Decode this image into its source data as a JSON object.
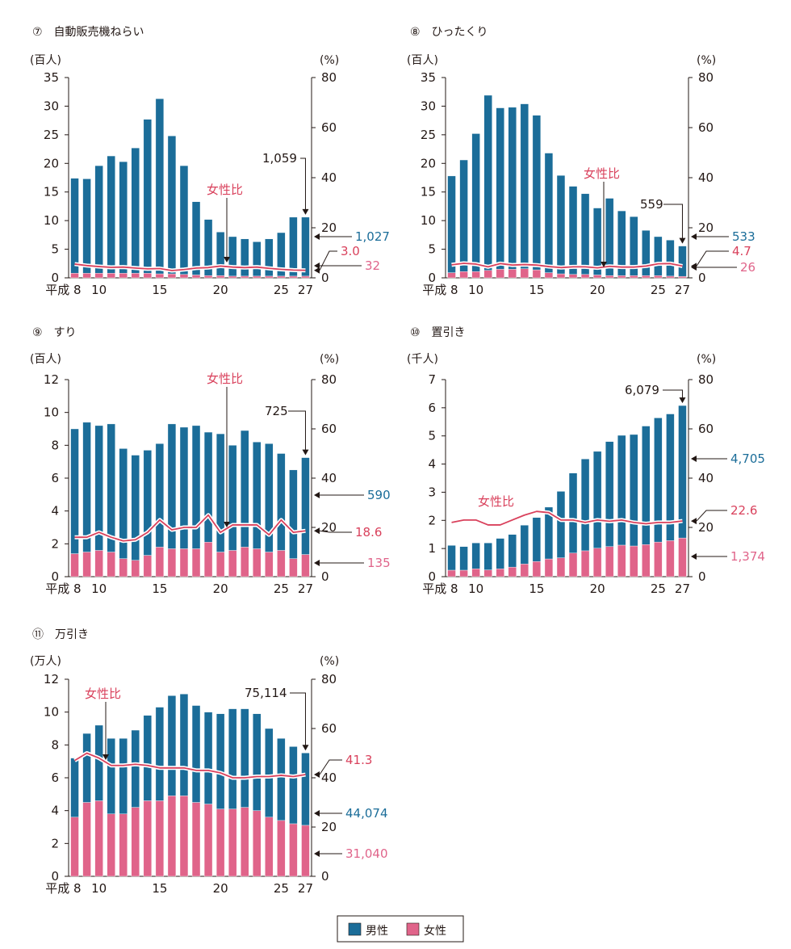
{
  "colors": {
    "male": "#1b6d99",
    "female": "#e0648a",
    "ratio": "#d9415c",
    "axis": "#231815"
  },
  "legend": {
    "male": "男性",
    "female": "女性"
  },
  "chart_data": [
    {
      "type": "bar",
      "title": "⑦　自動販売機ねらい",
      "left_unit": "(百人)",
      "right_unit": "(%)",
      "stacked": true,
      "x": [
        8,
        9,
        10,
        11,
        12,
        13,
        14,
        15,
        16,
        17,
        18,
        19,
        20,
        21,
        22,
        23,
        24,
        25,
        26,
        27
      ],
      "x_tick_labels": [
        "平成 8",
        "10",
        "15",
        "20",
        "25",
        "27"
      ],
      "x_tick_positions": [
        8,
        10,
        15,
        20,
        25,
        27
      ],
      "ylim": [
        0,
        35
      ],
      "yticks": [
        0,
        5,
        10,
        15,
        20,
        25,
        30,
        35
      ],
      "y2lim": [
        0,
        80
      ],
      "y2ticks": [
        0,
        20,
        40,
        60,
        80
      ],
      "series": [
        {
          "name": "男性",
          "values": [
            16.6,
            16.5,
            18.8,
            20.5,
            19.5,
            21.9,
            26.9,
            30.6,
            24.1,
            19.0,
            12.8,
            9.8,
            7.6,
            6.9,
            6.5,
            6.0,
            6.5,
            7.6,
            10.3,
            10.3
          ]
        },
        {
          "name": "女性",
          "values": [
            0.8,
            0.8,
            0.8,
            0.8,
            0.8,
            0.8,
            0.8,
            0.7,
            0.7,
            0.6,
            0.5,
            0.4,
            0.4,
            0.3,
            0.3,
            0.3,
            0.3,
            0.3,
            0.3,
            0.3
          ]
        },
        {
          "name": "女性比",
          "axis": "right",
          "values": [
            5.5,
            4.9,
            4.5,
            4.2,
            4.3,
            3.9,
            3.6,
            3.7,
            2.9,
            3.3,
            3.9,
            4.1,
            4.7,
            4.3,
            4.1,
            4.3,
            3.8,
            3.4,
            3.1,
            3.0
          ]
        }
      ],
      "ratio_label": "女性比",
      "annotations": {
        "total": "1,059",
        "male": "1,027",
        "ratio": "3.0",
        "female": "32"
      }
    },
    {
      "type": "bar",
      "title": "⑧　ひったくり",
      "left_unit": "(百人)",
      "right_unit": "(%)",
      "stacked": true,
      "x": [
        8,
        9,
        10,
        11,
        12,
        13,
        14,
        15,
        16,
        17,
        18,
        19,
        20,
        21,
        22,
        23,
        24,
        25,
        26,
        27
      ],
      "x_tick_labels": [
        "平成 8",
        "10",
        "15",
        "20",
        "25",
        "27"
      ],
      "x_tick_positions": [
        8,
        10,
        15,
        20,
        25,
        27
      ],
      "ylim": [
        0,
        35
      ],
      "yticks": [
        0,
        5,
        10,
        15,
        20,
        25,
        30,
        35
      ],
      "y2lim": [
        0,
        80
      ],
      "y2ticks": [
        0,
        20,
        40,
        60,
        80
      ],
      "series": [
        {
          "name": "男性",
          "values": [
            16.9,
            19.5,
            24.1,
            30.6,
            28.2,
            28.3,
            28.8,
            27.0,
            20.9,
            17.2,
            15.4,
            14.1,
            11.7,
            13.5,
            11.3,
            10.3,
            7.9,
            6.8,
            6.3,
            5.3
          ]
        },
        {
          "name": "女性",
          "values": [
            0.9,
            1.1,
            1.1,
            1.3,
            1.5,
            1.5,
            1.6,
            1.4,
            0.9,
            0.7,
            0.6,
            0.6,
            0.5,
            0.4,
            0.4,
            0.4,
            0.4,
            0.4,
            0.3,
            0.26
          ]
        },
        {
          "name": "女性比",
          "axis": "right",
          "values": [
            5.2,
            5.8,
            5.5,
            4.4,
            5.7,
            5.1,
            5.3,
            5.1,
            4.5,
            4.1,
            4.4,
            4.4,
            4.0,
            4.6,
            4.3,
            4.3,
            4.7,
            5.6,
            5.7,
            4.7
          ]
        }
      ],
      "ratio_label": "女性比",
      "annotations": {
        "total": "559",
        "male": "533",
        "ratio": "4.7",
        "female": "26"
      }
    },
    {
      "type": "bar",
      "title": "⑨　すり",
      "left_unit": "(百人)",
      "right_unit": "(%)",
      "stacked": true,
      "x": [
        8,
        9,
        10,
        11,
        12,
        13,
        14,
        15,
        16,
        17,
        18,
        19,
        20,
        21,
        22,
        23,
        24,
        25,
        26,
        27
      ],
      "x_tick_labels": [
        "平成 8",
        "10",
        "15",
        "20",
        "25",
        "27"
      ],
      "x_tick_positions": [
        8,
        10,
        15,
        20,
        25,
        27
      ],
      "ylim": [
        0,
        12
      ],
      "yticks": [
        0,
        2,
        4,
        6,
        8,
        10,
        12
      ],
      "y2lim": [
        0,
        80
      ],
      "y2ticks": [
        0,
        20,
        40,
        60,
        80
      ],
      "series": [
        {
          "name": "男性",
          "values": [
            7.6,
            7.9,
            7.6,
            7.8,
            6.7,
            6.4,
            6.4,
            6.3,
            7.6,
            7.4,
            7.5,
            6.7,
            7.2,
            6.4,
            7.1,
            6.5,
            6.6,
            5.9,
            5.4,
            5.9
          ]
        },
        {
          "name": "女性",
          "values": [
            1.4,
            1.5,
            1.6,
            1.5,
            1.1,
            1.0,
            1.3,
            1.8,
            1.7,
            1.7,
            1.7,
            2.1,
            1.5,
            1.6,
            1.8,
            1.7,
            1.5,
            1.6,
            1.1,
            1.35
          ]
        },
        {
          "name": "女性比",
          "axis": "right",
          "values": [
            16.0,
            16.0,
            18.0,
            16.0,
            14.5,
            15.0,
            18.0,
            23.0,
            19.0,
            20.0,
            20.0,
            25.0,
            18.0,
            21.0,
            21.0,
            21.0,
            17.0,
            23.0,
            18.0,
            18.6
          ]
        }
      ],
      "ratio_label": "女性比",
      "annotations": {
        "total": "725",
        "male": "590",
        "ratio": "18.6",
        "female": "135"
      }
    },
    {
      "type": "bar",
      "title": "⑩　置引き",
      "left_unit": "(千人)",
      "right_unit": "(%)",
      "stacked": true,
      "x": [
        8,
        9,
        10,
        11,
        12,
        13,
        14,
        15,
        16,
        17,
        18,
        19,
        20,
        21,
        22,
        23,
        24,
        25,
        26,
        27
      ],
      "x_tick_labels": [
        "平成 8",
        "10",
        "15",
        "20",
        "25",
        "27"
      ],
      "x_tick_positions": [
        8,
        10,
        15,
        20,
        25,
        27
      ],
      "ylim": [
        0,
        7
      ],
      "yticks": [
        0,
        1,
        2,
        3,
        4,
        5,
        6,
        7
      ],
      "y2lim": [
        0,
        80
      ],
      "y2ticks": [
        0,
        20,
        40,
        60,
        80
      ],
      "series": [
        {
          "name": "男性",
          "values": [
            0.88,
            0.84,
            0.92,
            0.96,
            1.08,
            1.16,
            1.38,
            1.56,
            1.84,
            2.36,
            2.84,
            3.26,
            3.44,
            3.73,
            3.9,
            3.96,
            4.21,
            4.41,
            4.5,
            4.705
          ]
        },
        {
          "name": "女性",
          "values": [
            0.23,
            0.23,
            0.28,
            0.24,
            0.28,
            0.34,
            0.45,
            0.54,
            0.63,
            0.67,
            0.84,
            0.92,
            1.01,
            1.07,
            1.12,
            1.09,
            1.14,
            1.23,
            1.28,
            1.374
          ]
        },
        {
          "name": "女性比",
          "axis": "right",
          "values": [
            22.0,
            23.0,
            23.0,
            21.0,
            21.0,
            23.0,
            25.0,
            26.5,
            26.0,
            23.0,
            23.0,
            22.0,
            23.0,
            22.5,
            23.0,
            22.0,
            21.5,
            22.0,
            22.0,
            22.6
          ]
        }
      ],
      "ratio_label": "女性比",
      "annotations": {
        "total": "6,079",
        "male": "4,705",
        "ratio": "22.6",
        "female": "1,374"
      }
    },
    {
      "type": "bar",
      "title": "⑪　万引き",
      "left_unit": "(万人)",
      "right_unit": "(%)",
      "stacked": true,
      "x": [
        8,
        9,
        10,
        11,
        12,
        13,
        14,
        15,
        16,
        17,
        18,
        19,
        20,
        21,
        22,
        23,
        24,
        25,
        26,
        27
      ],
      "x_tick_labels": [
        "平成 8",
        "10",
        "15",
        "20",
        "25",
        "27"
      ],
      "x_tick_positions": [
        8,
        10,
        15,
        20,
        25,
        27
      ],
      "ylim": [
        0,
        12
      ],
      "yticks": [
        0,
        2,
        4,
        6,
        8,
        10,
        12
      ],
      "y2lim": [
        0,
        80
      ],
      "y2ticks": [
        0,
        20,
        40,
        60,
        80
      ],
      "series": [
        {
          "name": "男性",
          "values": [
            3.6,
            4.2,
            4.6,
            4.6,
            4.6,
            4.7,
            5.2,
            5.7,
            6.1,
            6.2,
            5.9,
            5.6,
            5.8,
            6.1,
            6.0,
            5.9,
            5.4,
            5.0,
            4.7,
            4.4074
          ]
        },
        {
          "name": "女性",
          "values": [
            3.6,
            4.5,
            4.6,
            3.8,
            3.8,
            4.2,
            4.6,
            4.6,
            4.9,
            4.9,
            4.5,
            4.4,
            4.1,
            4.1,
            4.2,
            4.0,
            3.6,
            3.4,
            3.2,
            3.104
          ]
        },
        {
          "name": "女性比",
          "axis": "right",
          "values": [
            47.0,
            50.0,
            48.0,
            45.0,
            45.0,
            45.5,
            45.0,
            44.0,
            44.0,
            44.0,
            43.0,
            43.0,
            42.0,
            40.0,
            40.0,
            40.5,
            40.5,
            41.0,
            40.5,
            41.3
          ]
        }
      ],
      "ratio_label": "女性比",
      "annotations": {
        "total": "75,114",
        "male": "44,074",
        "ratio": "41.3",
        "female": "31,040"
      }
    }
  ]
}
